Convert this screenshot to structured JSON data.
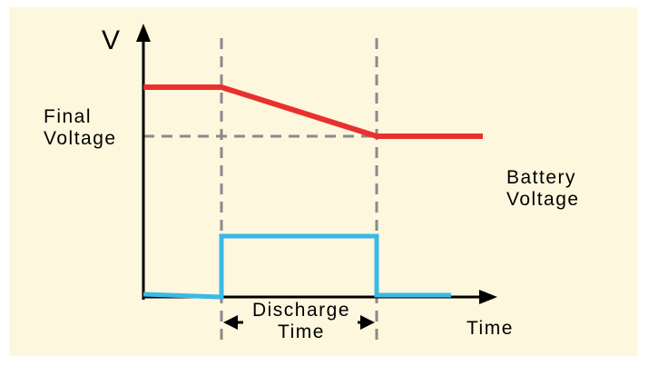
{
  "diagram": {
    "y_axis_label": "V",
    "x_axis_label": "Time",
    "final_voltage_label": "Final Voltage",
    "battery_voltage_label": "Battery Voltage",
    "discharge_time_label": "Discharge Time",
    "colors": {
      "background": "#fdf7dd",
      "battery_voltage_line": "#e8312f",
      "discharge_pulse_line": "#3bb8e6",
      "guide_lines": "#8a8a8a",
      "axes": "#000000"
    }
  }
}
